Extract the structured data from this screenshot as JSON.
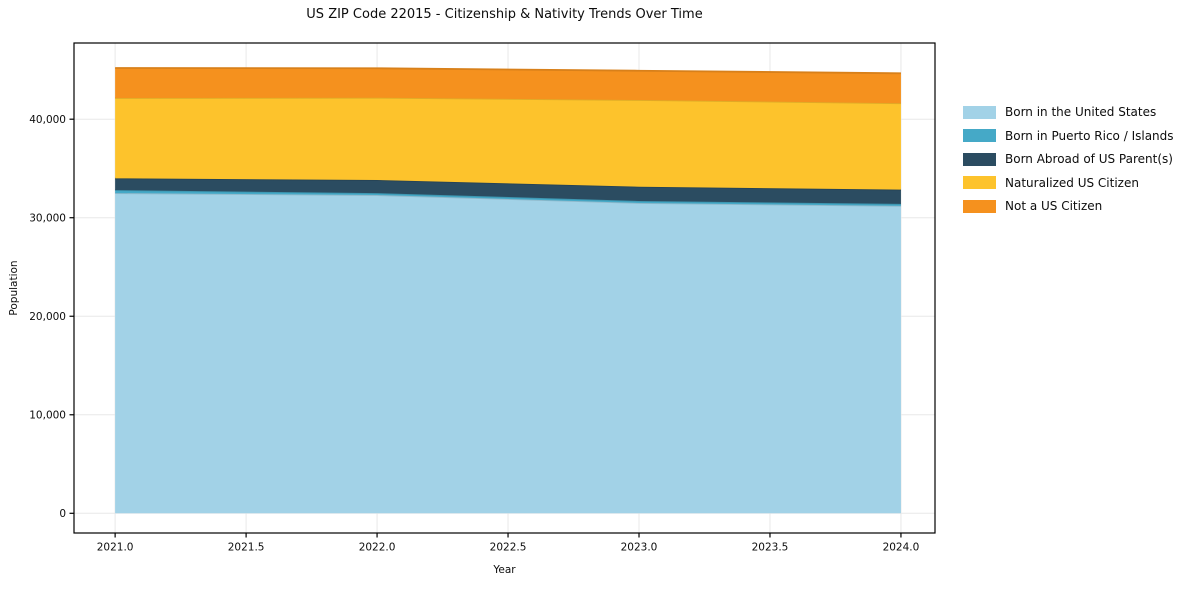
{
  "figure": {
    "background": "#ffffff"
  },
  "chart_data": {
    "type": "area",
    "stacked": true,
    "title": "US ZIP Code 22015 - Citizenship & Nativity Trends Over Time",
    "xlabel": "Year",
    "ylabel": "Population",
    "x": [
      2021,
      2022,
      2023,
      2024
    ],
    "series": [
      {
        "name": "Born in the United States",
        "color": "#A2D2E7",
        "values": [
          32500,
          32300,
          31500,
          31200
        ]
      },
      {
        "name": "Born in Puerto Rico / Islands",
        "color": "#45A9C7",
        "values": [
          300,
          200,
          200,
          200
        ]
      },
      {
        "name": "Born Abroad of US Parent(s)",
        "color": "#2B4C61",
        "values": [
          1200,
          1330,
          1450,
          1450
        ]
      },
      {
        "name": "Naturalized US Citizen",
        "color": "#FDC32C",
        "values": [
          8150,
          8350,
          8800,
          8770
        ]
      },
      {
        "name": "Not a US Citizen",
        "color": "#F5911E",
        "values": [
          3050,
          2990,
          2970,
          3040
        ]
      }
    ],
    "xticks": {
      "values": [
        2021,
        2021.5,
        2022,
        2022.5,
        2023,
        2023.5,
        2024
      ],
      "labels": [
        "2021.0",
        "2021.5",
        "2022.0",
        "2022.5",
        "2023.0",
        "2023.5",
        "2024.0"
      ]
    },
    "yticks": {
      "values": [
        0,
        10000,
        20000,
        30000,
        40000
      ],
      "labels": [
        "0",
        "10,000",
        "20,000",
        "30,000",
        "40,000"
      ]
    },
    "xlim": [
      2020.843,
      2024.13
    ],
    "ylim": [
      -2000,
      47734
    ],
    "grid": true,
    "grid_color": "#e8e8e8",
    "legend_position": "right"
  }
}
